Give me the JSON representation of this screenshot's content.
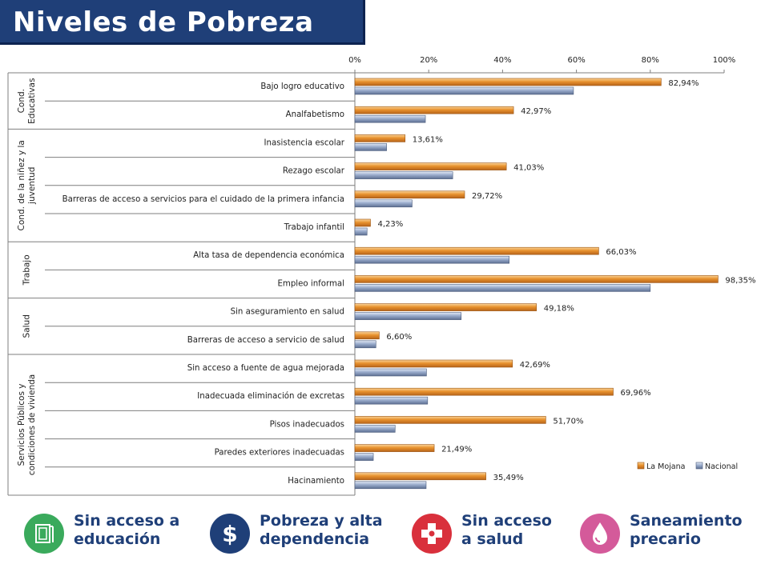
{
  "title": "Niveles de Pobreza",
  "chart_data": {
    "type": "bar",
    "orientation": "horizontal",
    "x_ticks": [
      "0%",
      "20%",
      "40%",
      "60%",
      "80%",
      "100%"
    ],
    "xlim": [
      0,
      100
    ],
    "groups": [
      {
        "label": "Cond. Educativas",
        "count": 2
      },
      {
        "label": "Cond. de la niñez y la juventud",
        "count": 4
      },
      {
        "label": "Trabajo",
        "count": 2
      },
      {
        "label": "Salud",
        "count": 2
      },
      {
        "label": "Servicios Públicos y condiciones de vivienda",
        "count": 5
      }
    ],
    "categories": [
      "Bajo logro educativo",
      "Analfabetismo",
      "Inasistencia escolar",
      "Rezago escolar",
      "Barreras de acceso a  servicios para el cuidado de la primera infancia",
      "Trabajo infantil",
      "Alta tasa de dependencia económica",
      "Empleo informal",
      "Sin aseguramiento en salud",
      "Barreras de acceso a servicio de salud",
      "Sin acceso a fuente de agua mejorada",
      "Inadecuada eliminación de excretas",
      "Pisos inadecuados",
      "Paredes exteriores inadecuadas",
      "Hacinamiento"
    ],
    "series": [
      {
        "name": "La Mojana",
        "color": "#e8922e",
        "values": [
          82.94,
          42.97,
          13.61,
          41.03,
          29.72,
          4.23,
          66.03,
          98.35,
          49.18,
          6.6,
          42.69,
          69.96,
          51.7,
          21.49,
          35.49
        ],
        "labels": [
          "82,94%",
          "42,97%",
          "13,61%",
          "41,03%",
          "29,72%",
          "4,23%",
          "66,03%",
          "98,35%",
          "49,18%",
          "6,60%",
          "42,69%",
          "69,96%",
          "51,70%",
          "21,49%",
          "35,49%"
        ]
      },
      {
        "name": "Nacional",
        "color": "#9aaccc",
        "values": [
          59.2,
          19.1,
          8.6,
          26.5,
          15.5,
          3.3,
          41.8,
          80.0,
          28.8,
          5.7,
          19.4,
          19.7,
          10.9,
          5.0,
          19.3
        ]
      }
    ],
    "legend_position": "bottom-right"
  },
  "footer": [
    {
      "label": "Sin acceso a\neducación",
      "icon": "book-icon",
      "color": "#3aaa5c"
    },
    {
      "label": "Pobreza y alta\ndependencia",
      "icon": "dollar-icon",
      "color": "#1f3f78"
    },
    {
      "label": "Sin acceso\na salud",
      "icon": "health-cross-icon",
      "color": "#d9303c"
    },
    {
      "label": "Saneamiento\nprecario",
      "icon": "water-drop-icon",
      "color": "#d45a9a"
    }
  ]
}
